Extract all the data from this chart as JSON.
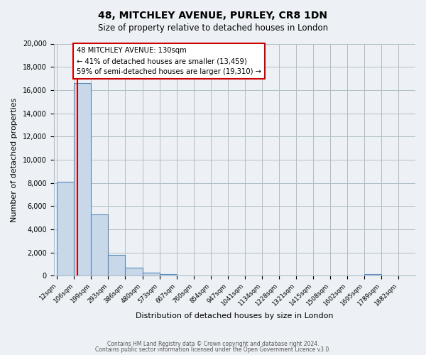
{
  "title1": "48, MITCHLEY AVENUE, PURLEY, CR8 1DN",
  "title2": "Size of property relative to detached houses in London",
  "xlabel": "Distribution of detached houses by size in London",
  "ylabel": "Number of detached properties",
  "bin_labels": [
    "12sqm",
    "106sqm",
    "199sqm",
    "293sqm",
    "386sqm",
    "480sqm",
    "573sqm",
    "667sqm",
    "760sqm",
    "854sqm",
    "947sqm",
    "1041sqm",
    "1134sqm",
    "1228sqm",
    "1321sqm",
    "1415sqm",
    "1508sqm",
    "1602sqm",
    "1695sqm",
    "1789sqm",
    "1882sqm"
  ],
  "bar_heights": [
    8100,
    16600,
    5300,
    1800,
    700,
    300,
    150,
    0,
    0,
    0,
    0,
    0,
    0,
    0,
    0,
    0,
    0,
    0,
    150,
    0,
    0
  ],
  "bar_color": "#c8d8e8",
  "bar_edge_color": "#5588bb",
  "red_line_x": 1.18,
  "annotation_title": "48 MITCHLEY AVENUE: 130sqm",
  "annotation_line1": "← 41% of detached houses are smaller (13,459)",
  "annotation_line2": "59% of semi-detached houses are larger (19,310) →",
  "annotation_box_color": "#ffffff",
  "annotation_box_edge": "#cc0000",
  "ylim": [
    0,
    20000
  ],
  "yticks": [
    0,
    2000,
    4000,
    6000,
    8000,
    10000,
    12000,
    14000,
    16000,
    18000,
    20000
  ],
  "footer1": "Contains HM Land Registry data © Crown copyright and database right 2024.",
  "footer2": "Contains public sector information licensed under the Open Government Licence v3.0.",
  "background_color": "#edf1f5",
  "plot_background": "#edf1f5",
  "grid_color": "#b0bec8"
}
